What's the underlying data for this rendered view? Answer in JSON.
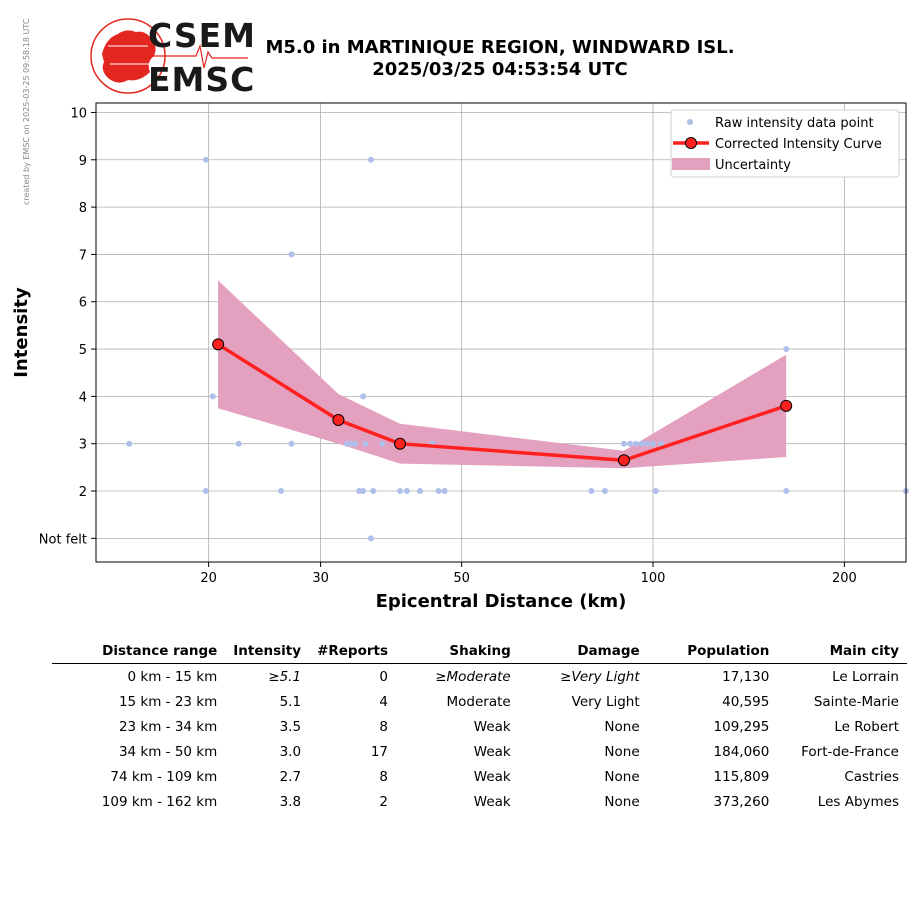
{
  "watermark": "created by EMSC on 2025-03-25 09:58:18 UTC",
  "logo": {
    "top": "CSEM",
    "bottom": "EMSC"
  },
  "title": {
    "line1": "M5.0 in MARTINIQUE REGION, WINDWARD ISL.",
    "line2": "2025/03/25 04:53:54 UTC"
  },
  "colors": {
    "raw_points": "#aebfea",
    "curve": "#ff2020",
    "uncertainty": "#e4a0bf",
    "logo_red": "#e3261f"
  },
  "chart_data": {
    "type": "scatter",
    "xlabel": "Epicentral Distance (km)",
    "ylabel": "Intensity",
    "xscale": "log",
    "xlim": [
      13.3,
      250
    ],
    "ylim": [
      0.5,
      10.2
    ],
    "xticks": [
      20,
      30,
      50,
      100,
      200
    ],
    "yticks": [
      1,
      2,
      3,
      4,
      5,
      6,
      7,
      8,
      9,
      10
    ],
    "ytick_labels": [
      "Not felt",
      "2",
      "3",
      "4",
      "5",
      "6",
      "7",
      "8",
      "9",
      "10"
    ],
    "grid": true,
    "legend_position": "top-right",
    "legend": [
      "Raw intensity data point",
      "Corrected Intensity Curve",
      "Uncertainty"
    ],
    "raw_points": [
      [
        15,
        3
      ],
      [
        19.8,
        9
      ],
      [
        19.8,
        2
      ],
      [
        20.3,
        4
      ],
      [
        22.3,
        3
      ],
      [
        26,
        2
      ],
      [
        27,
        7
      ],
      [
        27,
        3
      ],
      [
        33,
        3
      ],
      [
        33.5,
        3
      ],
      [
        34,
        3
      ],
      [
        34.5,
        2
      ],
      [
        35,
        2
      ],
      [
        35,
        4
      ],
      [
        35.3,
        3
      ],
      [
        36,
        1
      ],
      [
        36,
        9
      ],
      [
        36.3,
        2
      ],
      [
        37.5,
        3
      ],
      [
        39.5,
        3
      ],
      [
        40,
        2
      ],
      [
        41,
        2
      ],
      [
        43,
        2
      ],
      [
        45,
        3
      ],
      [
        46,
        2
      ],
      [
        47,
        2
      ],
      [
        80,
        2
      ],
      [
        84,
        2
      ],
      [
        90,
        3
      ],
      [
        92,
        3
      ],
      [
        94,
        3
      ],
      [
        96,
        3
      ],
      [
        98,
        3
      ],
      [
        100,
        3
      ],
      [
        101,
        2
      ],
      [
        103,
        3
      ],
      [
        162,
        5
      ],
      [
        162,
        2
      ],
      [
        250,
        2
      ]
    ],
    "curve": [
      [
        20.7,
        5.1
      ],
      [
        32,
        3.5
      ],
      [
        40,
        3.0
      ],
      [
        90,
        2.65
      ],
      [
        162,
        3.8
      ]
    ],
    "uncertainty": {
      "x": [
        20.7,
        32,
        40,
        90,
        162
      ],
      "upper": [
        6.45,
        4.05,
        3.42,
        2.85,
        4.88
      ],
      "lower": [
        3.75,
        3.0,
        2.58,
        2.48,
        2.72
      ]
    }
  },
  "table": {
    "headers": [
      "Distance range",
      "Intensity",
      "#Reports",
      "Shaking",
      "Damage",
      "Population",
      "Main city"
    ],
    "rows": [
      {
        "range": "0 km -   15 km",
        "intensity": "≥5.1",
        "reports": "0",
        "shaking": "≥Moderate",
        "damage": "≥Very Light",
        "population": "17,130",
        "city": "Le Lorrain"
      },
      {
        "range": "15 km -   23 km",
        "intensity": "5.1",
        "reports": "4",
        "shaking": "Moderate",
        "damage": "Very Light",
        "population": "40,595",
        "city": "Sainte-Marie"
      },
      {
        "range": "23 km -   34 km",
        "intensity": "3.5",
        "reports": "8",
        "shaking": "Weak",
        "damage": "None",
        "population": "109,295",
        "city": "Le Robert"
      },
      {
        "range": "34 km -   50 km",
        "intensity": "3.0",
        "reports": "17",
        "shaking": "Weak",
        "damage": "None",
        "population": "184,060",
        "city": "Fort-de-France"
      },
      {
        "range": "74 km -  109 km",
        "intensity": "2.7",
        "reports": "8",
        "shaking": "Weak",
        "damage": "None",
        "population": "115,809",
        "city": "Castries"
      },
      {
        "range": "109 km -  162 km",
        "intensity": "3.8",
        "reports": "2",
        "shaking": "Weak",
        "damage": "None",
        "population": "373,260",
        "city": "Les Abymes"
      }
    ]
  }
}
